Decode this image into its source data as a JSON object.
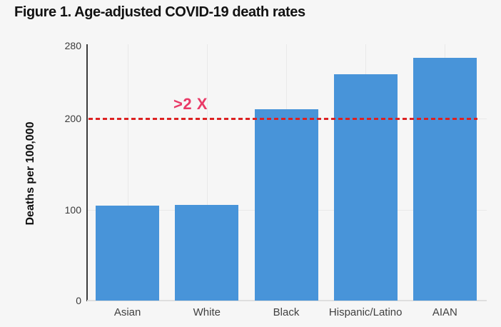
{
  "figure": {
    "title": "Figure 1. Age-adjusted COVID-19 death rates"
  },
  "chart_data": {
    "type": "bar",
    "title": "Figure 1. Age-adjusted COVID-19 death rates",
    "categories": [
      "Asian",
      "White",
      "Black",
      "Hispanic/Latino",
      "AIAN"
    ],
    "values": [
      104,
      105,
      210,
      249,
      267
    ],
    "xlabel": "",
    "ylabel": "Deaths per 100,000",
    "ylim": [
      0,
      280
    ],
    "yticks": [
      0,
      100,
      200,
      280
    ],
    "grid": true,
    "legend": "none",
    "bar_color": "#4894d9",
    "background_color": "#f6f6f6",
    "annotation": {
      "label": ">2 X",
      "label_color": "#e93a67",
      "line_value": 200,
      "line_color": "#dd2222",
      "line_style": "dashed"
    }
  }
}
